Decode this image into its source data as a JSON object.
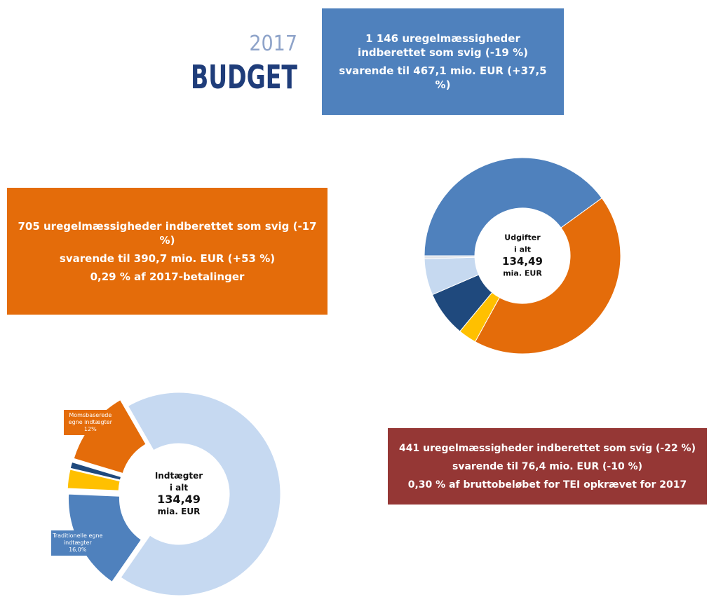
{
  "logo": {
    "year": "2017",
    "word": "BUDGET"
  },
  "boxes": [
    {
      "paragraphs": [
        "1 146 uregelmæssigheder indberettet som svig (-19 %)",
        "svarende til 467,1 mio. EUR (+37,5 %)"
      ]
    },
    {
      "paragraphs": [
        "705 uregelmæssigheder indberettet som svig (-17 %)",
        "svarende til 390,7 mio. EUR (+53 %)",
        "0,29 % af 2017-betalinger"
      ]
    },
    {
      "paragraphs": [
        "441 uregelmæssigheder indberettet som svig (-22 %)",
        "svarende til 76,4 mio. EUR (-10 %)",
        "0,30 % af bruttobeløbet for TEI opkrævet for 2017"
      ]
    }
  ],
  "chart_data": [
    {
      "type": "donut",
      "center_label": [
        "Udgifter",
        "i alt",
        "134,49",
        "mia. EUR"
      ],
      "categories": [
        null,
        null,
        null,
        null,
        null,
        null
      ],
      "values": [
        40,
        43,
        3,
        7.5,
        6,
        0.5
      ],
      "colors": [
        "#4f81bd",
        "#e46c0a",
        "#ffc000",
        "#1f497d",
        "#c6d9f0",
        "#dfe3ea"
      ]
    },
    {
      "type": "donut",
      "center_label": [
        "Indtægter",
        "i alt",
        "134,49",
        "mia. EUR"
      ],
      "categories": [
        null,
        "Traditionelle egne indtægter",
        null,
        null,
        "Momsbaserede egne indtægter"
      ],
      "values": [
        68,
        16,
        3,
        1,
        12
      ],
      "value_labels": [
        null,
        "16,0%",
        null,
        null,
        "12%"
      ],
      "colors": [
        "#c6d9f1",
        "#4f81bd",
        "#ffc000",
        "#1f497d",
        "#e46c0a"
      ]
    }
  ]
}
